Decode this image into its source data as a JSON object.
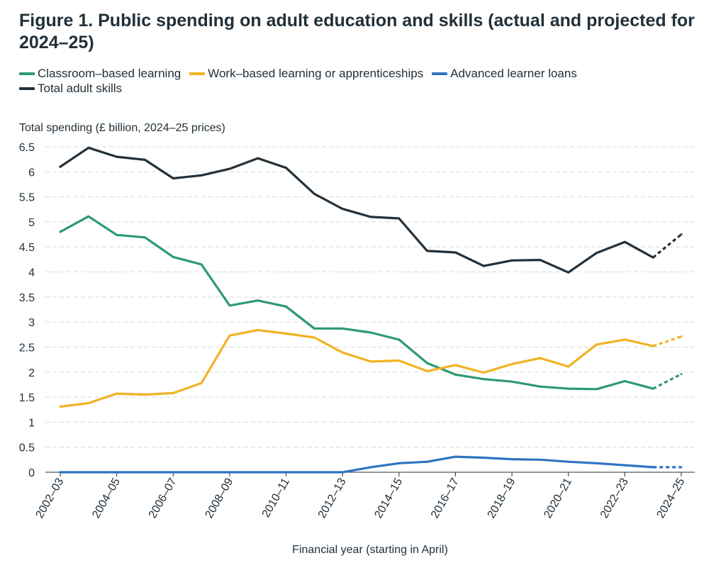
{
  "title": "Figure 1. Public spending on adult education and skills (actual and projected for 2024–25)",
  "chart_data": {
    "type": "line",
    "title": "Figure 1. Public spending on adult education and skills (actual and projected for 2024–25)",
    "ylabel": "Total spending (£ billion, 2024–25 prices)",
    "xlabel": "Financial year (starting in April)",
    "ylim": [
      0,
      6.5
    ],
    "yticks": [
      "0",
      "0.5",
      "1",
      "1.5",
      "2",
      "2.5",
      "3",
      "3.5",
      "4",
      "4.5",
      "5",
      "5.5",
      "6",
      "6.5"
    ],
    "x": [
      "2002–03",
      "2003–04",
      "2004–05",
      "2005–06",
      "2006–07",
      "2007–08",
      "2008–09",
      "2009–10",
      "2010–11",
      "2011–12",
      "2012–13",
      "2013–14",
      "2014–15",
      "2015–16",
      "2016–17",
      "2017–18",
      "2018–19",
      "2019–20",
      "2020–21",
      "2021–22",
      "2022–23",
      "2023–24",
      "2024–25"
    ],
    "xtick_labels": [
      "2002–03",
      "2004–05",
      "2006–07",
      "2008–09",
      "2010–11",
      "2012–13",
      "2014–15",
      "2016–17",
      "2018–19",
      "2020–21",
      "2022–23",
      "2024–25"
    ],
    "projected_from": "2023–24",
    "grid": "horizontal dashed",
    "legend_position": "top-left",
    "series": [
      {
        "name": "Classroom–based learning",
        "color": "#2e9a6e",
        "values": [
          4.8,
          5.11,
          4.74,
          4.69,
          4.3,
          4.15,
          3.33,
          3.43,
          3.31,
          2.87,
          2.87,
          2.79,
          2.65,
          2.18,
          1.95,
          1.86,
          1.81,
          1.71,
          1.67,
          1.66,
          1.82,
          1.67,
          1.96
        ]
      },
      {
        "name": "Work–based learning or apprenticeships",
        "color": "#f0b323",
        "values": [
          1.31,
          1.38,
          1.57,
          1.55,
          1.58,
          1.78,
          2.73,
          2.84,
          2.77,
          2.69,
          2.39,
          2.21,
          2.23,
          2.02,
          2.14,
          1.99,
          2.16,
          2.28,
          2.11,
          2.55,
          2.65,
          2.52,
          2.71
        ]
      },
      {
        "name": "Advanced learner loans",
        "color": "#2e74c0",
        "values": [
          0,
          0,
          0,
          0,
          0,
          0,
          0,
          0,
          0,
          0,
          0,
          0.1,
          0.18,
          0.21,
          0.31,
          0.29,
          0.26,
          0.25,
          0.21,
          0.18,
          0.14,
          0.1,
          0.1
        ]
      },
      {
        "name": "Total adult skills",
        "color": "#22303a",
        "values": [
          6.1,
          6.48,
          6.3,
          6.24,
          5.87,
          5.93,
          6.06,
          6.27,
          6.08,
          5.56,
          5.26,
          5.1,
          5.07,
          4.42,
          4.39,
          4.12,
          4.23,
          4.24,
          3.99,
          4.38,
          4.6,
          4.29,
          4.75
        ]
      }
    ]
  }
}
